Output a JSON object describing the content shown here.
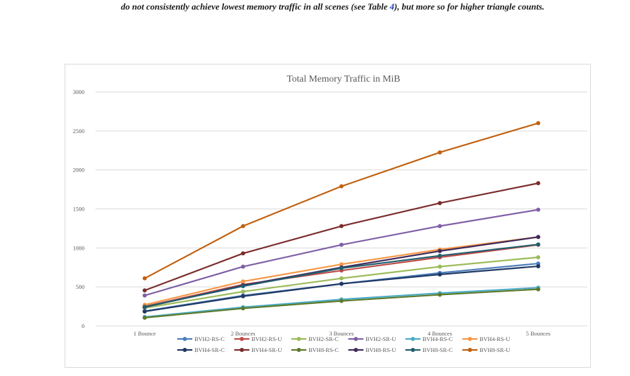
{
  "caption": {
    "before": "do not consistently achieve lowest memory traffic in all scenes (see Table ",
    "ref": "4",
    "after": "), but more so for higher triangle counts."
  },
  "chart_data": {
    "type": "line",
    "title": "Total Memory Traffic in MiB",
    "xlabel": "",
    "ylabel": "",
    "ylim": [
      0,
      3000
    ],
    "yticks": [
      0,
      500,
      1000,
      1500,
      2000,
      2500,
      3000
    ],
    "grid": true,
    "legend_position": "bottom",
    "categories": [
      "1 Bounce",
      "2 Bounces",
      "3 Bounces",
      "4 Bounces",
      "5 Bounces"
    ],
    "series": [
      {
        "name": "BVH2-RS-C",
        "color": "#4a7ebb",
        "values": [
          190,
          390,
          540,
          680,
          800
        ]
      },
      {
        "name": "BVH2-RS-U",
        "color": "#be4b48",
        "values": [
          250,
          530,
          710,
          880,
          1040
        ]
      },
      {
        "name": "BVH2-SR-C",
        "color": "#9bbb59",
        "values": [
          230,
          440,
          610,
          760,
          880
        ]
      },
      {
        "name": "BVH2-SR-U",
        "color": "#7f5fa6",
        "values": [
          390,
          760,
          1040,
          1280,
          1490
        ]
      },
      {
        "name": "BVH4-RS-C",
        "color": "#4bacc6",
        "values": [
          115,
          240,
          340,
          420,
          490
        ]
      },
      {
        "name": "BVH4-RS-U",
        "color": "#f79646",
        "values": [
          270,
          570,
          790,
          980,
          1140
        ]
      },
      {
        "name": "BVH4-SR-C",
        "color": "#1f3864",
        "values": [
          185,
          380,
          540,
          660,
          765
        ]
      },
      {
        "name": "BVH4-SR-U",
        "color": "#7b2c2c",
        "values": [
          455,
          930,
          1280,
          1575,
          1830
        ]
      },
      {
        "name": "BVH8-RS-C",
        "color": "#5e7a2a",
        "values": [
          105,
          225,
          320,
          400,
          470
        ]
      },
      {
        "name": "BVH8-RS-U",
        "color": "#3f2a5a",
        "values": [
          240,
          520,
          750,
          960,
          1140
        ]
      },
      {
        "name": "BVH8-SR-C",
        "color": "#215f6e",
        "values": [
          245,
          510,
          740,
          900,
          1045
        ]
      },
      {
        "name": "BVH8-SR-U",
        "color": "#c0600f",
        "values": [
          610,
          1280,
          1790,
          2225,
          2600
        ]
      }
    ]
  }
}
